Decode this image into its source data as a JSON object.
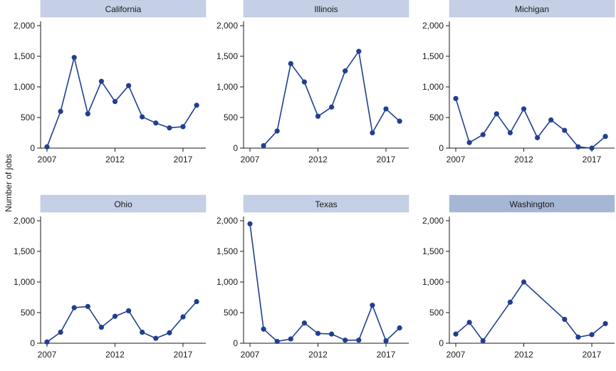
{
  "figure": {
    "ylabel": "Number of jobs"
  },
  "chart_data": {
    "type": "line",
    "ylabel": "Number of jobs",
    "xlim": [
      2007,
      2018
    ],
    "ylim": [
      0,
      2000
    ],
    "yticks": [
      0,
      500,
      1000,
      1500,
      2000
    ],
    "ytick_labels": [
      "0",
      "500",
      "1,000",
      "1,500",
      "2,000"
    ],
    "xticks": [
      2007,
      2012,
      2017
    ],
    "xtick_labels": [
      "2007",
      "2012",
      "2017"
    ],
    "colors": {
      "line": "#1f3f8f",
      "header": "#c5d0e6",
      "header_active": "#a6b6d5",
      "axis": "#1a1a1a"
    },
    "panels": [
      {
        "name": "California",
        "points": [
          [
            2007,
            20
          ],
          [
            2008,
            600
          ],
          [
            2009,
            1480
          ],
          [
            2010,
            560
          ],
          [
            2011,
            1090
          ],
          [
            2012,
            760
          ],
          [
            2013,
            1020
          ],
          [
            2014,
            510
          ],
          [
            2015,
            410
          ],
          [
            2016,
            330
          ],
          [
            2017,
            350
          ],
          [
            2018,
            700
          ]
        ]
      },
      {
        "name": "Illinois",
        "points": [
          [
            2008,
            40
          ],
          [
            2009,
            280
          ],
          [
            2010,
            1380
          ],
          [
            2011,
            1080
          ],
          [
            2012,
            520
          ],
          [
            2013,
            670
          ],
          [
            2014,
            1260
          ],
          [
            2015,
            1580
          ],
          [
            2016,
            250
          ],
          [
            2017,
            640
          ],
          [
            2018,
            440
          ]
        ]
      },
      {
        "name": "Michigan",
        "points": [
          [
            2007,
            810
          ],
          [
            2008,
            90
          ],
          [
            2009,
            220
          ],
          [
            2010,
            560
          ],
          [
            2011,
            250
          ],
          [
            2012,
            640
          ],
          [
            2013,
            170
          ],
          [
            2014,
            460
          ],
          [
            2015,
            290
          ],
          [
            2016,
            20
          ],
          [
            2017,
            0
          ],
          [
            2018,
            190
          ]
        ]
      },
      {
        "name": "Ohio",
        "points": [
          [
            2007,
            20
          ],
          [
            2008,
            180
          ],
          [
            2009,
            580
          ],
          [
            2010,
            600
          ],
          [
            2011,
            260
          ],
          [
            2012,
            440
          ],
          [
            2013,
            530
          ],
          [
            2014,
            180
          ],
          [
            2015,
            80
          ],
          [
            2016,
            170
          ],
          [
            2017,
            430
          ],
          [
            2018,
            680
          ]
        ]
      },
      {
        "name": "Texas",
        "points": [
          [
            2007,
            1950
          ],
          [
            2008,
            230
          ],
          [
            2009,
            30
          ],
          [
            2010,
            70
          ],
          [
            2011,
            330
          ],
          [
            2012,
            160
          ],
          [
            2013,
            150
          ],
          [
            2014,
            50
          ],
          [
            2015,
            50
          ],
          [
            2016,
            620
          ],
          [
            2017,
            40
          ],
          [
            2018,
            250
          ]
        ]
      },
      {
        "name": "Washington",
        "active": true,
        "points": [
          [
            2007,
            150
          ],
          [
            2008,
            340
          ],
          [
            2009,
            40
          ],
          [
            2011,
            670
          ],
          [
            2012,
            1000
          ],
          [
            2015,
            390
          ],
          [
            2016,
            100
          ],
          [
            2017,
            140
          ],
          [
            2018,
            320
          ]
        ]
      }
    ]
  }
}
